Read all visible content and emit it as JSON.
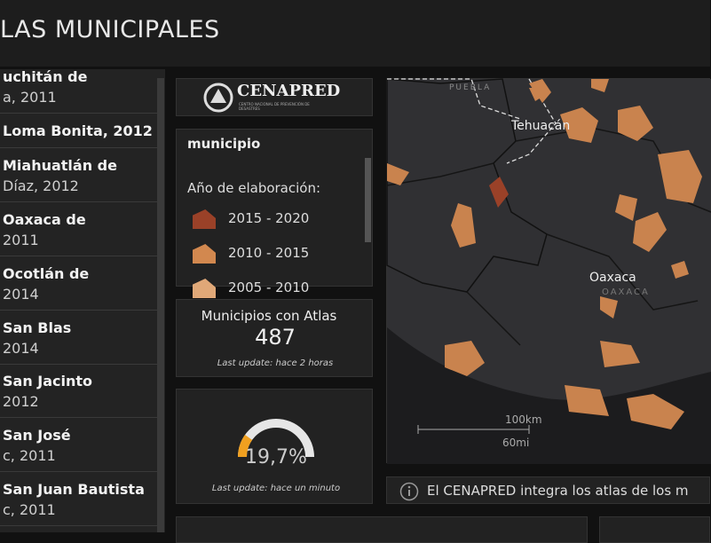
{
  "header": {
    "title": "LAS MUNICIPALES"
  },
  "list": {
    "items": [
      {
        "line1": "uchitán de",
        "line2": "a, 2011"
      },
      {
        "line1": "Loma Bonita, 2012",
        "line2": null
      },
      {
        "line1": "Miahuatlán de",
        "line2": "Díaz, 2012"
      },
      {
        "line1": "Oaxaca de",
        "line2": "2011"
      },
      {
        "line1": "Ocotlán de",
        "line2": "2014"
      },
      {
        "line1": "San Blas",
        "line2": "2014"
      },
      {
        "line1": "San Jacinto",
        "line2": "2012"
      },
      {
        "line1": "San José",
        "line2": "c, 2011"
      },
      {
        "line1": "San Juan Bautista",
        "line2": "c, 2011"
      }
    ]
  },
  "logo": {
    "name": "CENAPRED",
    "subtitle": "CENTRO NACIONAL DE PREVENCIÓN DE DESASTRES"
  },
  "legend": {
    "layer": "municipio",
    "field": "Año de elaboración:",
    "entries": [
      {
        "label": "2015 - 2020",
        "color": "#9a4128"
      },
      {
        "label": "2010 - 2015",
        "color": "#d2884f"
      },
      {
        "label": "2005 - 2010",
        "color": "#e0a878"
      }
    ]
  },
  "indicator": {
    "title": "Municipios con Atlas",
    "value": "487",
    "update": "Last update: hace 2 horas"
  },
  "gauge": {
    "value": 19.7,
    "label": "19,7%",
    "range": [
      0,
      100
    ],
    "color": "#f0a020",
    "update": "Last update: hace un minuto"
  },
  "map": {
    "labels": [
      "PUEBLA",
      "Tehuacán",
      "Oaxaca",
      "OAXACA"
    ],
    "scale_km": "100km",
    "scale_mi": "60mi"
  },
  "info": {
    "text": "El CENAPRED integra los atlas de los  m"
  }
}
